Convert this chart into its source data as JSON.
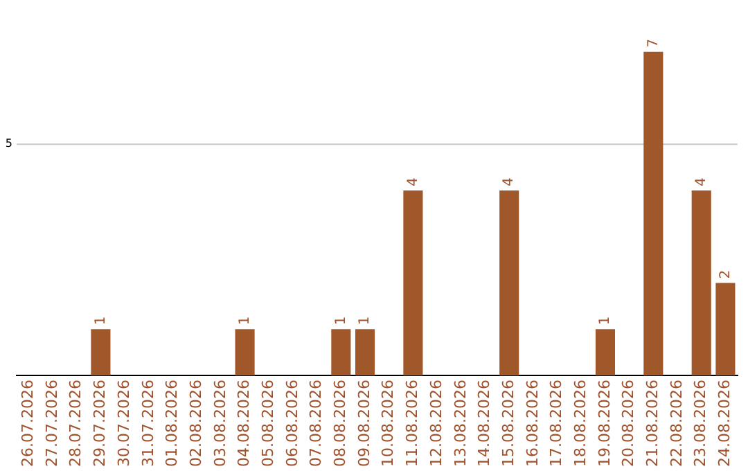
{
  "chart_data": {
    "type": "bar",
    "categories": [
      "26.07.2026",
      "27.07.2026",
      "28.07.2026",
      "29.07.2026",
      "30.07.2026",
      "31.07.2026",
      "01.08.2026",
      "02.08.2026",
      "03.08.2026",
      "04.08.2026",
      "05.08.2026",
      "06.08.2026",
      "07.08.2026",
      "08.08.2026",
      "09.08.2026",
      "10.08.2026",
      "11.08.2026",
      "12.08.2026",
      "13.08.2026",
      "14.08.2026",
      "15.08.2026",
      "16.08.2026",
      "17.08.2026",
      "18.08.2026",
      "19.08.2026",
      "20.08.2026",
      "21.08.2026",
      "22.08.2026",
      "23.08.2026",
      "24.08.2026"
    ],
    "values": [
      0,
      0,
      0,
      1,
      0,
      0,
      0,
      0,
      0,
      1,
      0,
      0,
      0,
      1,
      1,
      0,
      4,
      0,
      0,
      0,
      4,
      0,
      0,
      0,
      1,
      0,
      7,
      0,
      4,
      2
    ],
    "value_labels": [
      null,
      null,
      null,
      "1",
      null,
      null,
      null,
      null,
      null,
      "1",
      null,
      null,
      null,
      "1",
      "1",
      null,
      "4",
      null,
      null,
      null,
      "4",
      null,
      null,
      null,
      "1",
      null,
      "7",
      null,
      "4",
      "2"
    ],
    "color": "#a0572a",
    "ref_lines": [
      {
        "axis": "y",
        "value": 5,
        "label": "5",
        "color": "#c8c8c8"
      }
    ],
    "legend": false
  }
}
